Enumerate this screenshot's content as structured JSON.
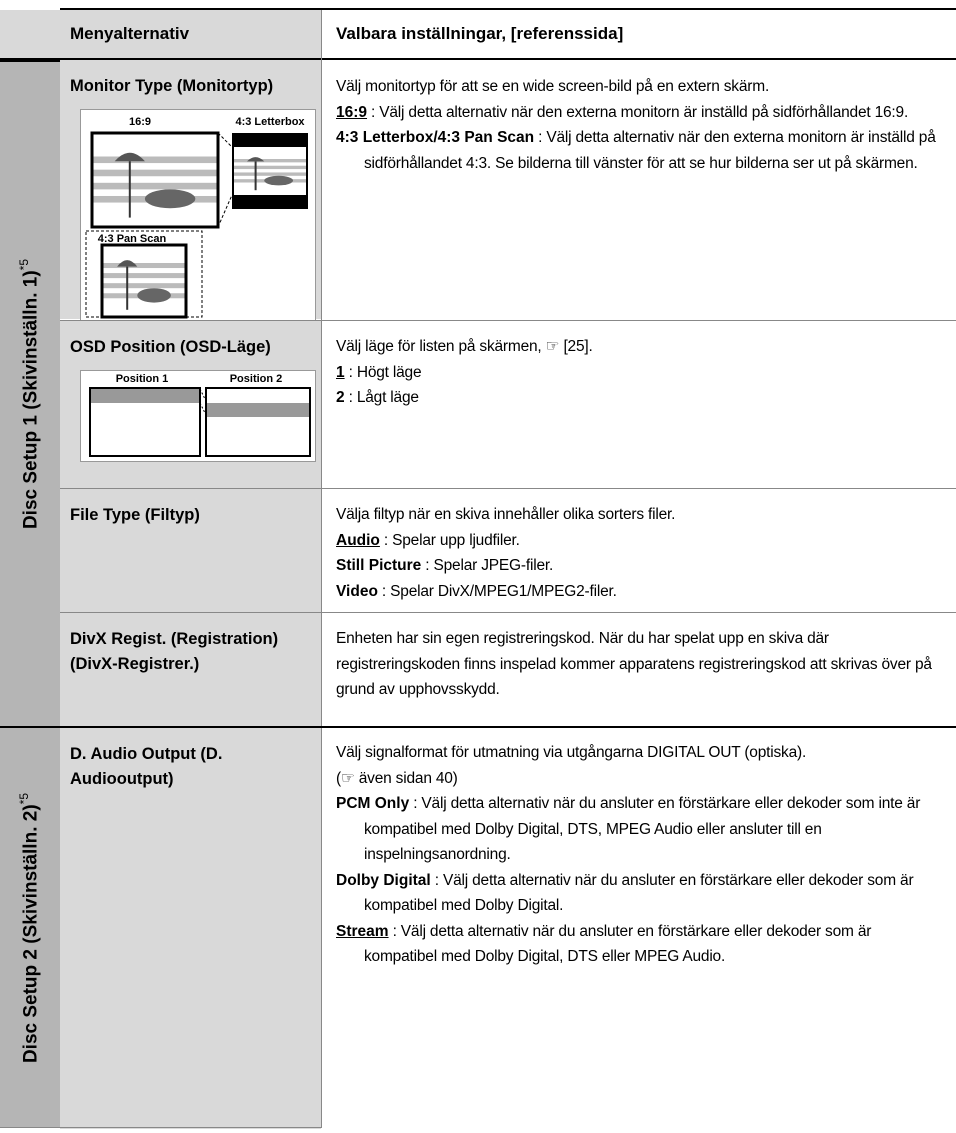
{
  "header": {
    "menu": "Menyalternativ",
    "settings": "Valbara inställningar, [referenssida]"
  },
  "groups": [
    {
      "label": "Disc Setup 1 (Skivinställn. 1)",
      "footnote": "*5",
      "rows": [
        {
          "menu": "Monitor Type (Monitortyp)",
          "figure_labels": [
            "16:9",
            "4:3 Letterbox",
            "4:3 Pan Scan"
          ],
          "intro": [
            "Välj monitortyp för att se en wide screen-bild på en extern skärm."
          ],
          "options": [
            {
              "term": "16:9",
              "default": true,
              "text": ": Välj detta alternativ när den externa monitorn är inställd på sidförhållandet 16:9."
            },
            {
              "term": "4:3 Letterbox/4:3 Pan Scan",
              "default": false,
              "text": ": Välj detta alternativ när den externa monitorn är inställd på sidförhållandet 4:3. Se bilderna till vänster för att se hur bilderna ser ut på skärmen."
            }
          ]
        },
        {
          "menu": "OSD Position (OSD-Läge)",
          "figure_labels": [
            "Position 1",
            "Position 2"
          ],
          "intro": [
            "Välj läge för listen på skärmen, ☞ [25]."
          ],
          "options": [
            {
              "term": "1",
              "default": true,
              "text": ": Högt läge"
            },
            {
              "term": "2",
              "default": false,
              "text": ": Lågt läge"
            }
          ]
        },
        {
          "menu": "File Type (Filtyp)",
          "intro": [
            "Välja filtyp när en skiva innehåller olika sorters filer."
          ],
          "options": [
            {
              "term": "Audio",
              "default": true,
              "text": ": Spelar upp ljudfiler."
            },
            {
              "term": "Still Picture",
              "default": false,
              "text": ": Spelar JPEG-filer."
            },
            {
              "term": "Video",
              "default": false,
              "text": ": Spelar DivX/MPEG1/MPEG2-filer."
            }
          ]
        },
        {
          "menu": "DivX Regist. (Registration) (DivX-Registrer.)",
          "intro": [
            "Enheten har sin egen registreringskod. När du har spelat upp en skiva där registreringskoden finns inspelad kommer apparatens registreringskod att skrivas över på grund av upphovsskydd."
          ]
        }
      ]
    },
    {
      "label": "Disc Setup 2 (Skivinställn. 2)",
      "footnote": "*5",
      "rows": [
        {
          "menu": "D. Audio Output (D. Audiooutput)",
          "intro": [
            "Välj signalformat för utmatning via utgångarna DIGITAL OUT (optiska).",
            "(☞ även sidan 40)"
          ],
          "options": [
            {
              "term": "PCM Only",
              "default": false,
              "text": ": Välj detta alternativ när du ansluter en förstärkare eller dekoder som inte är kompatibel med Dolby Digital, DTS, MPEG Audio eller ansluter till en inspelningsanordning."
            },
            {
              "term": "Dolby Digital",
              "default": false,
              "text": ": Välj detta alternativ när du ansluter en förstärkare eller dekoder som är kompatibel med Dolby Digital."
            },
            {
              "term": "Stream",
              "default": true,
              "text": ": Välj detta alternativ när du ansluter en förstärkare eller dekoder som är kompatibel med Dolby Digital, DTS eller MPEG Audio."
            }
          ]
        }
      ]
    }
  ]
}
